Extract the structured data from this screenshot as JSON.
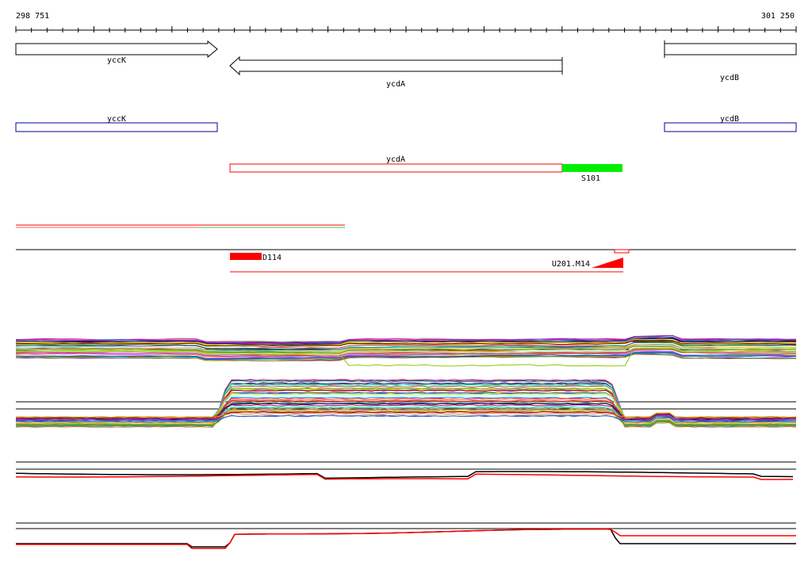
{
  "ruler": {
    "start_label": "298 751",
    "end_label": "301 250",
    "start_bp": 298751,
    "end_bp": 301250
  },
  "genes": [
    {
      "name": "yccK",
      "strand": "+",
      "start_bp": 298751,
      "end_bp": 299400
    },
    {
      "name": "ycdA",
      "strand": "-",
      "start_bp": 299440,
      "end_bp": 300507
    },
    {
      "name": "ycdB",
      "strand": "+",
      "start_bp": 300845,
      "end_bp": 301250
    }
  ],
  "transcripts": [
    {
      "name": "yccK",
      "start_bp": 298751,
      "end_bp": 299400
    },
    {
      "name": "ycdB",
      "start_bp": 300845,
      "end_bp": 301250
    }
  ],
  "red_feature": {
    "name": "ycdA",
    "start_bp": 299440,
    "end_bp": 300507,
    "extension": {
      "name": "S101",
      "start_bp": 300507,
      "end_bp": 300700
    }
  },
  "segments": [
    {
      "name": "D114",
      "start_bp": 299440,
      "end_bp": 299543
    },
    {
      "name": "U201.M14",
      "start_bp": 300570,
      "end_bp": 300700
    }
  ],
  "colors": {
    "gene_outline": "#000000",
    "transcript": "#0000aa",
    "feature_red": "#ff0000",
    "s101_green": "#00ee00",
    "ref_line": "#000000"
  },
  "expression_panels": [
    {
      "id": "panel1",
      "line_count": 40
    },
    {
      "id": "panel2",
      "line_count": 40
    },
    {
      "id": "panel3",
      "line_count": 2
    },
    {
      "id": "panel4",
      "line_count": 2
    }
  ]
}
